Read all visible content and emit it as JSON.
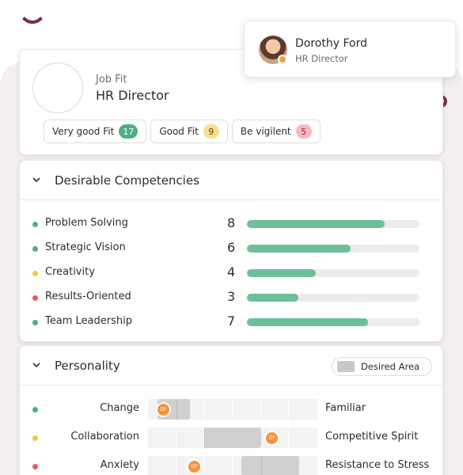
{
  "profile": {
    "name": "Dorothy Ford",
    "role": "HR Director",
    "status_color": "#f0a03c"
  },
  "job_fit": {
    "label": "Job Fit",
    "title": "HR Director",
    "chips": [
      {
        "label": "Very good Fit",
        "count": "17",
        "color": "green"
      },
      {
        "label": "Good Fit",
        "count": "9",
        "color": "yellow"
      },
      {
        "label": "Be vigilent",
        "count": "5",
        "color": "pink"
      }
    ]
  },
  "competencies": {
    "title": "Desirable Competencies",
    "max_score": 10,
    "items": [
      {
        "name": "Problem Solving",
        "score": "8",
        "value": 8,
        "status": "#4fae85"
      },
      {
        "name": "Strategic Vision",
        "score": "6",
        "value": 6,
        "status": "#4fae85"
      },
      {
        "name": "Creativity",
        "score": "4",
        "value": 4,
        "status": "#f2c744"
      },
      {
        "name": "Results-Oriented",
        "score": "3",
        "value": 3,
        "status": "#e8585f"
      },
      {
        "name": "Team Leadership",
        "score": "7",
        "value": 7,
        "status": "#4fae85"
      }
    ]
  },
  "personality": {
    "title": "Personality",
    "legend_label": "Desired Area",
    "marker_text": "DF",
    "scale_max": 6,
    "rows": [
      {
        "left": "Change",
        "right": "Familiar",
        "status": "#4fae85",
        "desired_from": 0.35,
        "desired_to": 1.5,
        "marker": 0.55
      },
      {
        "left": "Collaboration",
        "right": "Competitive Spirit",
        "status": "#f2c744",
        "desired_from": 2.0,
        "desired_to": 4.0,
        "marker": 4.4
      },
      {
        "left": "Anxiety",
        "right": "Resistance to Stress",
        "status": "#e8585f",
        "desired_from": 3.3,
        "desired_to": 5.35,
        "marker": 1.65
      }
    ]
  }
}
